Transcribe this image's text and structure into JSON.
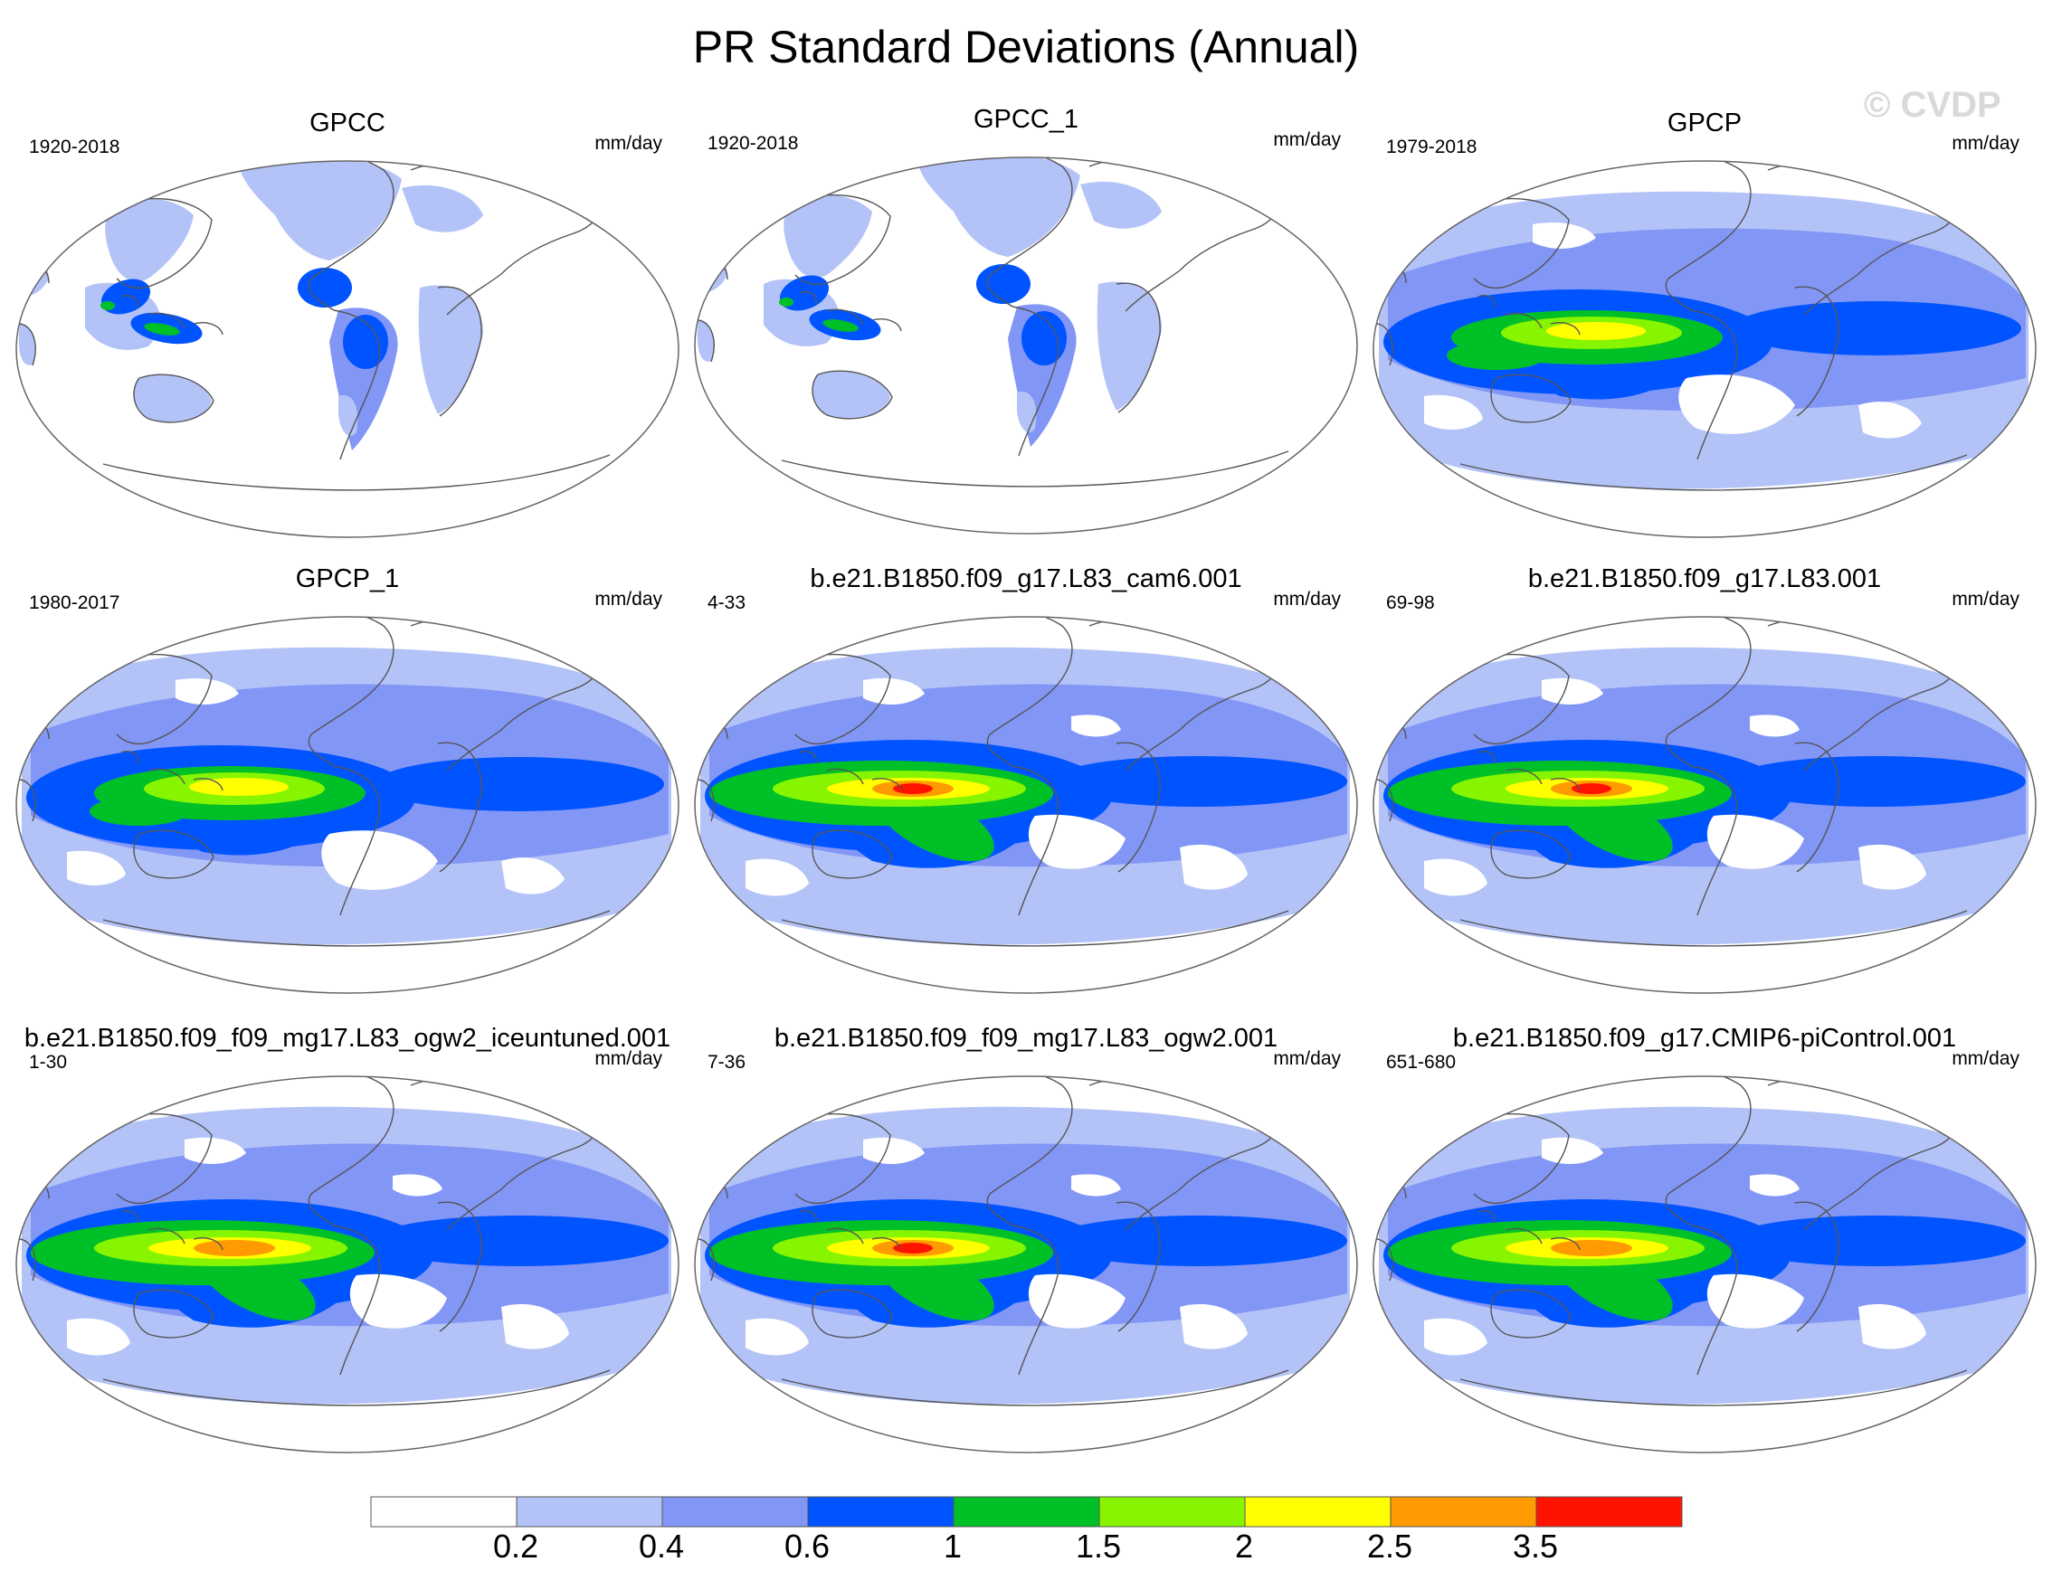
{
  "title": "PR Standard Deviations (Annual)",
  "watermark": "© CVDP",
  "colorbar": {
    "colors": [
      "#ffffff",
      "#b4c3f7",
      "#8296f6",
      "#0054ff",
      "#00c028",
      "#87f500",
      "#ffff00",
      "#ff9a00",
      "#ff1200"
    ],
    "tick_labels": [
      "0.2",
      "0.4",
      "0.6",
      "1",
      "1.5",
      "2",
      "2.5",
      "3.5"
    ]
  },
  "panels": [
    {
      "title": "GPCC",
      "period": "1920-2018",
      "units": "mm/day",
      "pattern": "gpcc"
    },
    {
      "title": "GPCC_1",
      "period": "1920-2018",
      "units": "mm/day",
      "pattern": "gpcc"
    },
    {
      "title": "GPCP",
      "period": "1979-2018",
      "units": "mm/day",
      "pattern": "obs",
      "peak": 6
    },
    {
      "title": "GPCP_1",
      "period": "1980-2017",
      "units": "mm/day",
      "pattern": "obs",
      "peak": 6
    },
    {
      "title": "b.e21.B1850.f09_g17.L83_cam6.001",
      "period": "4-33",
      "units": "mm/day",
      "pattern": "model",
      "peak": 8
    },
    {
      "title": "b.e21.B1850.f09_g17.L83.001",
      "period": "69-98",
      "units": "mm/day",
      "pattern": "model",
      "peak": 8
    },
    {
      "title": "b.e21.B1850.f09_f09_mg17.L83_ogw2_iceuntuned.001",
      "period": "1-30",
      "units": "mm/day",
      "pattern": "model",
      "peak": 7
    },
    {
      "title": "b.e21.B1850.f09_f09_mg17.L83_ogw2.001",
      "period": "7-36",
      "units": "mm/day",
      "pattern": "model",
      "peak": 8
    },
    {
      "title": "b.e21.B1850.f09_g17.CMIP6-piControl.001",
      "period": "651-680",
      "units": "mm/day",
      "pattern": "model",
      "peak": 7
    }
  ]
}
